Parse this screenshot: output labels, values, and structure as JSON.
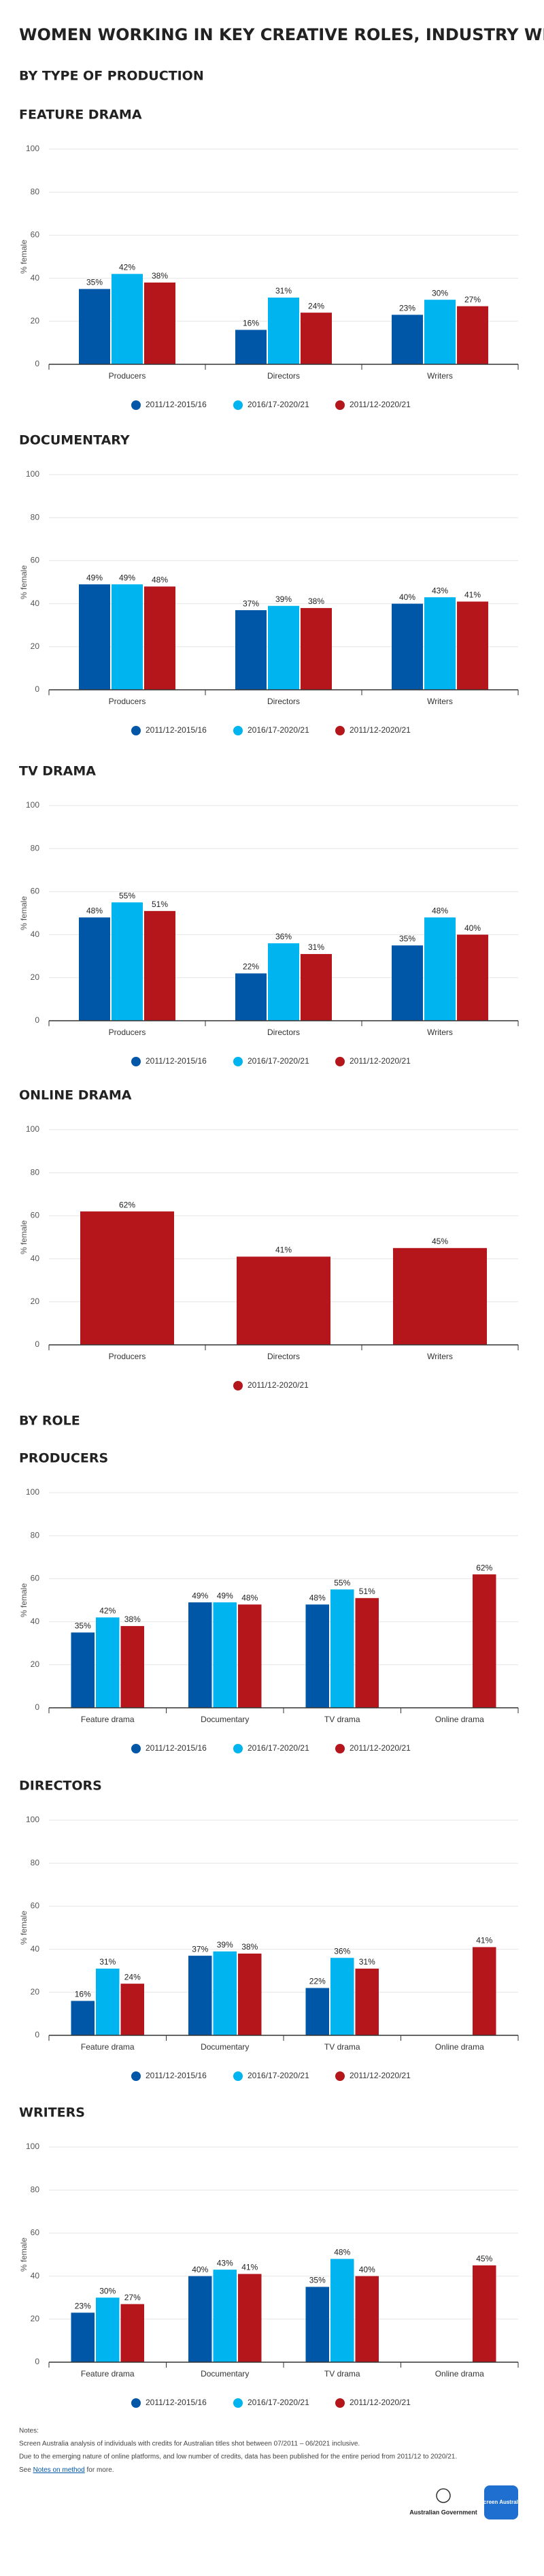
{
  "headings": {
    "title": "WOMEN WORKING IN KEY CREATIVE ROLES, INDUSTRY WIDE",
    "by_type": "BY TYPE OF PRODUCTION",
    "by_role": "BY ROLE"
  },
  "chart_data": [
    {
      "type": "bar",
      "title": "FEATURE DRAMA",
      "y_label": "% female",
      "categories": [
        "Producers",
        "Directors",
        "Writers"
      ],
      "ylim": [
        0,
        100
      ],
      "yticks": [
        0,
        20,
        40,
        60,
        80,
        100
      ],
      "grid": true,
      "legend": "bottom",
      "series": [
        {
          "name": "2011/12-2015/16",
          "color": "#0057a8",
          "values": [
            35,
            16,
            23
          ],
          "value_labels": [
            "35%",
            "16%",
            "23%"
          ]
        },
        {
          "name": "2016/17-2020/21",
          "color": "#00b5ef",
          "values": [
            42,
            31,
            30
          ],
          "value_labels": [
            "42%",
            "31%",
            "30%"
          ]
        },
        {
          "name": "2011/12-2020/21",
          "color": "#b5161b",
          "values": [
            38,
            24,
            27
          ],
          "value_labels": [
            "38%",
            "24%",
            "27%"
          ]
        }
      ]
    },
    {
      "type": "bar",
      "title": "DOCUMENTARY",
      "y_label": "% female",
      "categories": [
        "Producers",
        "Directors",
        "Writers"
      ],
      "ylim": [
        0,
        100
      ],
      "yticks": [
        0,
        20,
        40,
        60,
        80,
        100
      ],
      "grid": true,
      "legend": "bottom",
      "series": [
        {
          "name": "2011/12-2015/16",
          "color": "#0057a8",
          "values": [
            49,
            37,
            40
          ],
          "value_labels": [
            "49%",
            "37%",
            "40%"
          ]
        },
        {
          "name": "2016/17-2020/21",
          "color": "#00b5ef",
          "values": [
            49,
            39,
            43
          ],
          "value_labels": [
            "49%",
            "39%",
            "43%"
          ]
        },
        {
          "name": "2011/12-2020/21",
          "color": "#b5161b",
          "values": [
            48,
            38,
            41
          ],
          "value_labels": [
            "48%",
            "38%",
            "41%"
          ]
        }
      ]
    },
    {
      "type": "bar",
      "title": "TV DRAMA",
      "y_label": "% female",
      "categories": [
        "Producers",
        "Directors",
        "Writers"
      ],
      "ylim": [
        0,
        100
      ],
      "yticks": [
        0,
        20,
        40,
        60,
        80,
        100
      ],
      "grid": true,
      "legend": "bottom",
      "series": [
        {
          "name": "2011/12-2015/16",
          "color": "#0057a8",
          "values": [
            48,
            22,
            35
          ],
          "value_labels": [
            "48%",
            "22%",
            "35%"
          ]
        },
        {
          "name": "2016/17-2020/21",
          "color": "#00b5ef",
          "values": [
            55,
            36,
            48
          ],
          "value_labels": [
            "55%",
            "36%",
            "48%"
          ]
        },
        {
          "name": "2011/12-2020/21",
          "color": "#b5161b",
          "values": [
            51,
            31,
            40
          ],
          "value_labels": [
            "51%",
            "31%",
            "40%"
          ]
        }
      ]
    },
    {
      "type": "bar",
      "title": "ONLINE DRAMA",
      "y_label": "% female",
      "categories": [
        "Producers",
        "Directors",
        "Writers"
      ],
      "ylim": [
        0,
        100
      ],
      "yticks": [
        0,
        20,
        40,
        60,
        80,
        100
      ],
      "grid": true,
      "legend": "bottom",
      "series": [
        {
          "name": "2011/12-2020/21",
          "color": "#b5161b",
          "values": [
            62,
            41,
            45
          ],
          "value_labels": [
            "62%",
            "41%",
            "45%"
          ]
        }
      ]
    },
    {
      "type": "bar",
      "title": "PRODUCERS",
      "y_label": "% female",
      "categories": [
        "Feature drama",
        "Documentary",
        "TV drama",
        "Online drama"
      ],
      "ylim": [
        0,
        100
      ],
      "yticks": [
        0,
        20,
        40,
        60,
        80,
        100
      ],
      "grid": true,
      "legend": "bottom",
      "series": [
        {
          "name": "2011/12-2015/16",
          "color": "#0057a8",
          "values": [
            35,
            49,
            48,
            null
          ],
          "value_labels": [
            "35%",
            "49%",
            "48%",
            null
          ]
        },
        {
          "name": "2016/17-2020/21",
          "color": "#00b5ef",
          "values": [
            42,
            49,
            55,
            null
          ],
          "value_labels": [
            "42%",
            "49%",
            "55%",
            null
          ]
        },
        {
          "name": "2011/12-2020/21",
          "color": "#b5161b",
          "values": [
            38,
            48,
            51,
            62
          ],
          "value_labels": [
            "38%",
            "48%",
            "51%",
            "62%"
          ]
        }
      ]
    },
    {
      "type": "bar",
      "title": "DIRECTORS",
      "y_label": "% female",
      "categories": [
        "Feature drama",
        "Documentary",
        "TV drama",
        "Online drama"
      ],
      "ylim": [
        0,
        100
      ],
      "yticks": [
        0,
        20,
        40,
        60,
        80,
        100
      ],
      "grid": true,
      "legend": "bottom",
      "series": [
        {
          "name": "2011/12-2015/16",
          "color": "#0057a8",
          "values": [
            16,
            37,
            22,
            null
          ],
          "value_labels": [
            "16%",
            "37%",
            "22%",
            null
          ]
        },
        {
          "name": "2016/17-2020/21",
          "color": "#00b5ef",
          "values": [
            31,
            39,
            36,
            null
          ],
          "value_labels": [
            "31%",
            "39%",
            "36%",
            null
          ]
        },
        {
          "name": "2011/12-2020/21",
          "color": "#b5161b",
          "values": [
            24,
            38,
            31,
            41
          ],
          "value_labels": [
            "24%",
            "38%",
            "31%",
            "41%"
          ]
        }
      ]
    },
    {
      "type": "bar",
      "title": "WRITERS",
      "y_label": "% female",
      "categories": [
        "Feature drama",
        "Documentary",
        "TV drama",
        "Online drama"
      ],
      "ylim": [
        0,
        100
      ],
      "yticks": [
        0,
        20,
        40,
        60,
        80,
        100
      ],
      "grid": true,
      "legend": "bottom",
      "series": [
        {
          "name": "2011/12-2015/16",
          "color": "#0057a8",
          "values": [
            23,
            40,
            35,
            null
          ],
          "value_labels": [
            "23%",
            "40%",
            "35%",
            null
          ]
        },
        {
          "name": "2016/17-2020/21",
          "color": "#00b5ef",
          "values": [
            30,
            43,
            48,
            null
          ],
          "value_labels": [
            "30%",
            "43%",
            "48%",
            null
          ]
        },
        {
          "name": "2011/12-2020/21",
          "color": "#b5161b",
          "values": [
            27,
            41,
            40,
            45
          ],
          "value_labels": [
            "27%",
            "41%",
            "40%",
            "45%"
          ]
        }
      ]
    }
  ],
  "notes": {
    "heading": "Notes:",
    "lines": [
      "Screen Australia analysis of individuals with credits for Australian titles shot between 07/2011 – 06/2021 inclusive.",
      "Due to the emerging nature of online platforms, and low number of credits, data has been published for the entire period from 2011/12 to 2020/21."
    ],
    "see": "See",
    "link": "Notes on method",
    "more": "for more."
  },
  "footer": {
    "gov": "Australian Government",
    "brand": "Screen Australia"
  }
}
